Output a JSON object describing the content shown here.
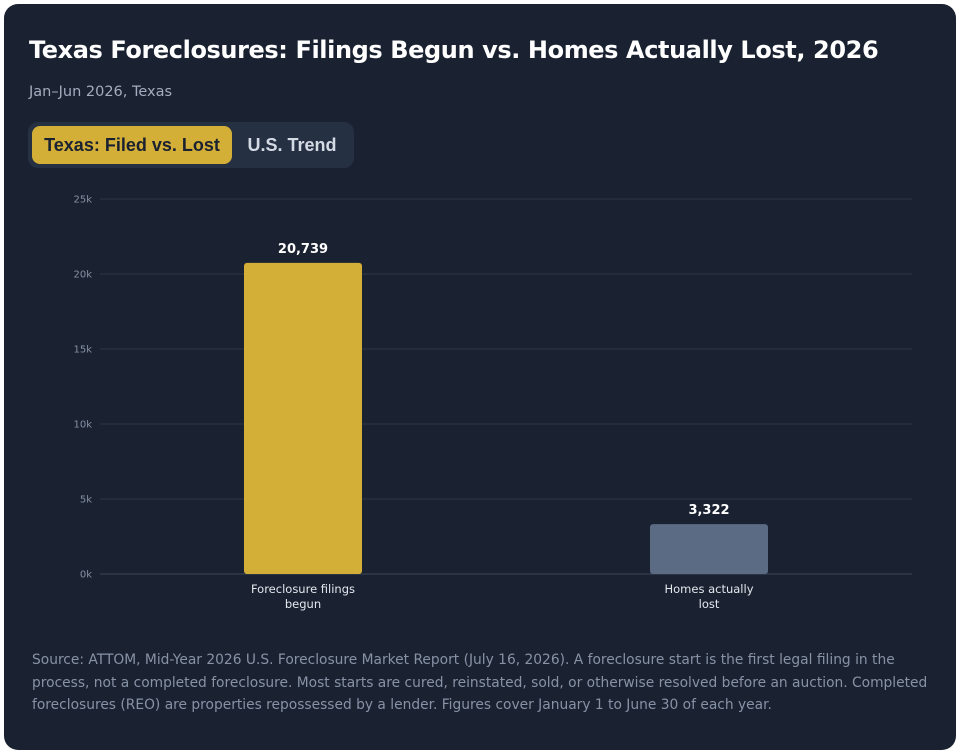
{
  "header": {
    "title": "Texas Foreclosures: Filings Begun vs. Homes Actually Lost, 2026",
    "subtitle": "Jan–Jun 2026, Texas"
  },
  "tabs": [
    {
      "label": "Texas: Filed vs. Lost",
      "active": true
    },
    {
      "label": "U.S. Trend",
      "active": false
    }
  ],
  "chart_data": {
    "type": "bar",
    "categories": [
      [
        "Foreclosure filings",
        "begun"
      ],
      [
        "Homes actually",
        "lost"
      ]
    ],
    "values": [
      20739,
      3322
    ],
    "value_labels": [
      "20,739",
      "3,322"
    ],
    "colors": [
      "#d4af37",
      "#5b6b84"
    ],
    "ylim": [
      0,
      25000
    ],
    "yticks": [
      0,
      5000,
      10000,
      15000,
      20000,
      25000
    ],
    "ytick_labels": [
      "0k",
      "5k",
      "10k",
      "15k",
      "20k",
      "25k"
    ],
    "grid": true,
    "legend": "none"
  },
  "footer": {
    "source": "Source: ATTOM, Mid-Year 2026 U.S. Foreclosure Market Report (July 16, 2026). A foreclosure start is the first legal filing in the process, not a completed foreclosure. Most starts are cured, reinstated, sold, or otherwise resolved before an auction. Completed foreclosures (REO) are properties repossessed by a lender. Figures cover January 1 to June 30 of each year."
  }
}
